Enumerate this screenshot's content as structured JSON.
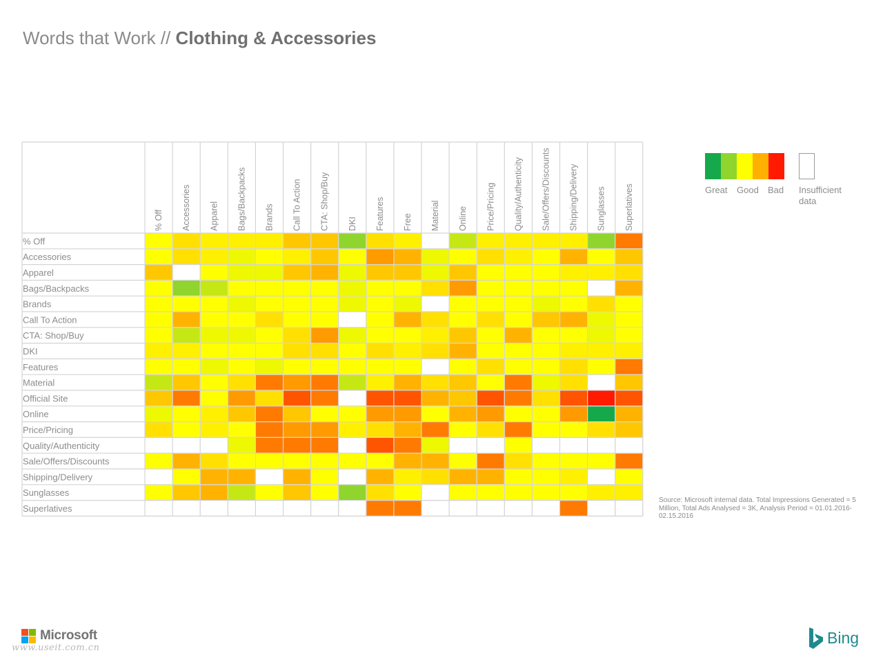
{
  "header": {
    "title_light": "Words that Work // ",
    "title_bold": "Clothing & Accessories"
  },
  "colors": {
    "great": "#16a94c",
    "great_good": "#8fd52e",
    "good": "#ffff00",
    "good_bad": "#ffb000",
    "bad": "#ff1a00",
    "insufficient": "#ffffff",
    "palette_by_score": [
      "#16a94c",
      "#8fd52e",
      "#c5e814",
      "#eef800",
      "#ffff00",
      "#fff000",
      "#ffe000",
      "#ffc700",
      "#ffb300",
      "#ff9a00",
      "#ff7a00",
      "#ff5500",
      "#ff1a00"
    ]
  },
  "legend": {
    "great_label": "Great",
    "good_label": "Good",
    "bad_label": "Bad",
    "insufficient_label": "Insufficient data"
  },
  "chart_data": {
    "type": "heatmap",
    "title": "Words that Work // Clothing & Accessories",
    "value_scale": "0 = Great, 4 = Good, 12 = Bad, null = Insufficient data",
    "columns": [
      "% Off",
      "Accessories",
      "Apparel",
      "Bags/Backpacks",
      "Brands",
      "Call To Action",
      "CTA: Shop/Buy",
      "DKI",
      "Features",
      "Free",
      "Material",
      "Online",
      "Price/Pricing",
      "Quality/Authenticity",
      "Sale/Offers/Discounts",
      "Shipping/Delivery",
      "Sunglasses",
      "Superlatives"
    ],
    "rows": [
      "% Off",
      "Accessories",
      "Apparel",
      "Bags/Backpacks",
      "Brands",
      "Call To Action",
      "CTA: Shop/Buy",
      "DKI",
      "Features",
      "Material",
      "Official Site",
      "Online",
      "Price/Pricing",
      "Quality/Authenticity",
      "Sale/Offers/Discounts",
      "Shipping/Delivery",
      "Sunglasses",
      "Superlatives"
    ],
    "values": [
      [
        4,
        6,
        5,
        5,
        5,
        7,
        7,
        1,
        6,
        5,
        null,
        2,
        5,
        5,
        5,
        5,
        1,
        10
      ],
      [
        4,
        6,
        5,
        3,
        4,
        5,
        7,
        4,
        9,
        8,
        3,
        4,
        6,
        5,
        4,
        8,
        4,
        7
      ],
      [
        7,
        null,
        4,
        3,
        3,
        7,
        8,
        3,
        7,
        7,
        3,
        7,
        4,
        4,
        4,
        5,
        5,
        6
      ],
      [
        4,
        1,
        2,
        4,
        4,
        4,
        4,
        3,
        4,
        4,
        6,
        9,
        4,
        4,
        4,
        4,
        null,
        8
      ],
      [
        4,
        4,
        4,
        3,
        4,
        4,
        4,
        3,
        4,
        3,
        null,
        4,
        4,
        4,
        3,
        4,
        6,
        4
      ],
      [
        4,
        8,
        4,
        4,
        6,
        4,
        4,
        null,
        4,
        8,
        6,
        4,
        6,
        4,
        7,
        8,
        3,
        4
      ],
      [
        4,
        2,
        3,
        3,
        4,
        6,
        9,
        3,
        4,
        4,
        5,
        7,
        4,
        8,
        4,
        4,
        3,
        4
      ],
      [
        5,
        5,
        4,
        4,
        4,
        6,
        6,
        4,
        6,
        5,
        6,
        8,
        4,
        4,
        4,
        5,
        5,
        5
      ],
      [
        4,
        4,
        3,
        4,
        3,
        4,
        4,
        4,
        4,
        4,
        null,
        4,
        6,
        4,
        4,
        6,
        4,
        10
      ],
      [
        2,
        7,
        4,
        6,
        10,
        9,
        10,
        2,
        5,
        8,
        6,
        7,
        4,
        10,
        3,
        6,
        null,
        7
      ],
      [
        7,
        10,
        4,
        9,
        6,
        11,
        10,
        null,
        11,
        11,
        8,
        7,
        11,
        10,
        6,
        11,
        12,
        11
      ],
      [
        3,
        4,
        5,
        7,
        10,
        7,
        4,
        4,
        9,
        9,
        4,
        8,
        9,
        4,
        4,
        9,
        0,
        8
      ],
      [
        6,
        4,
        5,
        4,
        10,
        9,
        9,
        5,
        6,
        8,
        10,
        4,
        6,
        10,
        4,
        4,
        6,
        7
      ],
      [
        null,
        null,
        null,
        3,
        10,
        10,
        10,
        null,
        11,
        10,
        3,
        null,
        null,
        4,
        null,
        null,
        null,
        null
      ],
      [
        4,
        8,
        6,
        4,
        4,
        4,
        4,
        4,
        4,
        8,
        8,
        4,
        10,
        6,
        4,
        4,
        4,
        10
      ],
      [
        null,
        4,
        8,
        8,
        null,
        8,
        4,
        null,
        8,
        5,
        6,
        8,
        8,
        4,
        4,
        5,
        null,
        4
      ],
      [
        4,
        7,
        8,
        2,
        4,
        7,
        4,
        1,
        6,
        4,
        null,
        4,
        4,
        4,
        4,
        4,
        5,
        5
      ],
      [
        null,
        null,
        null,
        null,
        null,
        null,
        null,
        null,
        10,
        10,
        null,
        null,
        null,
        null,
        null,
        10,
        null,
        null
      ]
    ]
  },
  "footer": {
    "source_text": "Source: Microsoft internal data. Total Impressions Generated = 5 Million, Total Ads Analysed = 3K, Analysis Period = 01.01.2016- 02.15.2016",
    "microsoft_label": "Microsoft",
    "watermark_text": "www.useit.com.cn",
    "bing_label": "Bing"
  }
}
